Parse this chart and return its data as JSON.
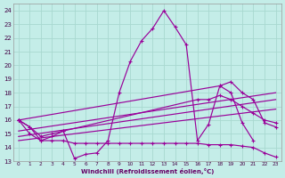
{
  "xlabel": "Windchill (Refroidissement éolien,°C)",
  "x_ticks": [
    0,
    1,
    2,
    3,
    4,
    5,
    6,
    7,
    8,
    9,
    10,
    11,
    12,
    13,
    14,
    15,
    16,
    17,
    18,
    19,
    20,
    21,
    22,
    23
  ],
  "ylim": [
    13,
    24.5
  ],
  "xlim": [
    -0.5,
    23.5
  ],
  "yticks": [
    13,
    14,
    15,
    16,
    17,
    18,
    19,
    20,
    21,
    22,
    23,
    24
  ],
  "bg_color": "#c4ede8",
  "grid_color": "#a8d8d0",
  "line_color": "#990099",
  "series_main": {
    "x": [
      0,
      1,
      2,
      3,
      4,
      5,
      6,
      7,
      8,
      9,
      10,
      11,
      12,
      13,
      14,
      15,
      16,
      17,
      18,
      19,
      20,
      21
    ],
    "y": [
      16.0,
      15.5,
      14.5,
      14.8,
      15.2,
      13.2,
      13.5,
      13.6,
      14.5,
      18.0,
      20.3,
      21.8,
      22.7,
      24.0,
      22.8,
      21.5,
      14.5,
      15.7,
      18.5,
      18.0,
      15.8,
      14.5
    ]
  },
  "series_upper_trend": {
    "x": [
      0,
      18,
      19,
      20,
      21,
      22,
      23
    ],
    "y": [
      16.0,
      18.5,
      18.8,
      18.0,
      17.5,
      15.8,
      15.5
    ]
  },
  "series_mid_trend": {
    "x": [
      0,
      1,
      2,
      3,
      4,
      16,
      17,
      18,
      19,
      20,
      21,
      22,
      23
    ],
    "y": [
      16.0,
      15.5,
      14.8,
      15.0,
      15.2,
      17.5,
      17.5,
      17.8,
      17.5,
      17.0,
      16.5,
      16.0,
      15.8
    ]
  },
  "series_lower": {
    "x": [
      0,
      1,
      2,
      3,
      4,
      5,
      6,
      7,
      8,
      9,
      10,
      11,
      12,
      13,
      14,
      15,
      16,
      17,
      18,
      19,
      20,
      21,
      22,
      23
    ],
    "y": [
      16.0,
      15.0,
      14.5,
      14.5,
      14.5,
      14.3,
      14.3,
      14.3,
      14.3,
      14.3,
      14.3,
      14.3,
      14.3,
      14.3,
      14.3,
      14.3,
      14.3,
      14.2,
      14.2,
      14.2,
      14.1,
      14.0,
      13.6,
      13.3
    ]
  },
  "trend_line1": {
    "x": [
      0,
      23
    ],
    "y": [
      15.2,
      18.0
    ]
  },
  "trend_line2": {
    "x": [
      0,
      23
    ],
    "y": [
      14.8,
      17.5
    ]
  },
  "trend_line3": {
    "x": [
      0,
      23
    ],
    "y": [
      14.5,
      16.8
    ]
  }
}
